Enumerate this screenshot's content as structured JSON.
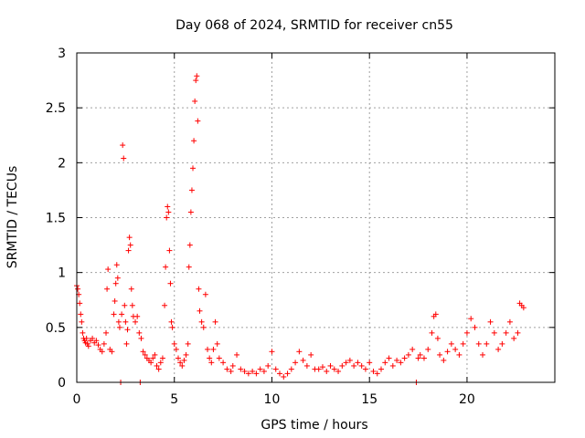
{
  "chart_data": {
    "type": "scatter",
    "title": "Day 068 of 2024, SRMTID for receiver cn55",
    "xlabel": "GPS time / hours",
    "ylabel": "SRMTID / TECUs",
    "xlim": [
      0,
      24.5
    ],
    "ylim": [
      0,
      3
    ],
    "xticks": [
      0,
      5,
      10,
      15,
      20
    ],
    "xtick_labels": [
      "0",
      "5",
      "10",
      "15",
      "20"
    ],
    "yticks": [
      0,
      0.5,
      1,
      1.5,
      2,
      2.5,
      3
    ],
    "ytick_labels": [
      "0",
      "0.5",
      "1",
      "1.5",
      "2",
      "2.5",
      "3"
    ],
    "grid": true,
    "marker": "plus",
    "series": [
      {
        "name": "cn55",
        "color": "#ff0000",
        "points": [
          [
            0.0,
            0.88
          ],
          [
            0.05,
            0.85
          ],
          [
            0.1,
            0.8
          ],
          [
            0.15,
            0.72
          ],
          [
            0.2,
            0.62
          ],
          [
            0.25,
            0.55
          ],
          [
            0.3,
            0.45
          ],
          [
            0.35,
            0.4
          ],
          [
            0.4,
            0.38
          ],
          [
            0.45,
            0.36
          ],
          [
            0.5,
            0.4
          ],
          [
            0.55,
            0.35
          ],
          [
            0.6,
            0.33
          ],
          [
            0.7,
            0.38
          ],
          [
            0.8,
            0.4
          ],
          [
            0.9,
            0.36
          ],
          [
            1.0,
            0.38
          ],
          [
            1.1,
            0.34
          ],
          [
            1.2,
            0.3
          ],
          [
            1.3,
            0.28
          ],
          [
            1.4,
            0.35
          ],
          [
            1.5,
            0.45
          ],
          [
            1.55,
            0.85
          ],
          [
            1.6,
            1.03
          ],
          [
            1.7,
            0.3
          ],
          [
            1.8,
            0.28
          ],
          [
            1.9,
            0.62
          ],
          [
            1.95,
            0.74
          ],
          [
            2.0,
            0.9
          ],
          [
            2.05,
            1.07
          ],
          [
            2.1,
            0.95
          ],
          [
            2.15,
            0.55
          ],
          [
            2.2,
            0.5
          ],
          [
            2.25,
            0.0
          ],
          [
            2.3,
            0.62
          ],
          [
            2.35,
            2.16
          ],
          [
            2.4,
            2.04
          ],
          [
            2.45,
            0.7
          ],
          [
            2.5,
            0.55
          ],
          [
            2.55,
            0.35
          ],
          [
            2.6,
            0.48
          ],
          [
            2.65,
            1.2
          ],
          [
            2.7,
            1.32
          ],
          [
            2.75,
            1.25
          ],
          [
            2.8,
            0.85
          ],
          [
            2.85,
            0.7
          ],
          [
            2.9,
            0.6
          ],
          [
            3.0,
            0.55
          ],
          [
            3.1,
            0.6
          ],
          [
            3.2,
            0.45
          ],
          [
            3.25,
            0.0
          ],
          [
            3.3,
            0.4
          ],
          [
            3.4,
            0.28
          ],
          [
            3.5,
            0.25
          ],
          [
            3.6,
            0.22
          ],
          [
            3.7,
            0.2
          ],
          [
            3.8,
            0.18
          ],
          [
            3.9,
            0.22
          ],
          [
            4.0,
            0.25
          ],
          [
            4.1,
            0.15
          ],
          [
            4.2,
            0.12
          ],
          [
            4.3,
            0.18
          ],
          [
            4.4,
            0.22
          ],
          [
            4.5,
            0.7
          ],
          [
            4.55,
            1.05
          ],
          [
            4.6,
            1.5
          ],
          [
            4.65,
            1.6
          ],
          [
            4.7,
            1.55
          ],
          [
            4.75,
            1.2
          ],
          [
            4.8,
            0.9
          ],
          [
            4.85,
            0.55
          ],
          [
            4.9,
            0.5
          ],
          [
            5.0,
            0.35
          ],
          [
            5.1,
            0.3
          ],
          [
            5.2,
            0.22
          ],
          [
            5.3,
            0.18
          ],
          [
            5.4,
            0.15
          ],
          [
            5.5,
            0.2
          ],
          [
            5.6,
            0.25
          ],
          [
            5.7,
            0.35
          ],
          [
            5.75,
            1.05
          ],
          [
            5.8,
            1.25
          ],
          [
            5.85,
            1.55
          ],
          [
            5.9,
            1.75
          ],
          [
            5.95,
            1.95
          ],
          [
            6.0,
            2.2
          ],
          [
            6.05,
            2.56
          ],
          [
            6.1,
            2.75
          ],
          [
            6.15,
            2.79
          ],
          [
            6.2,
            2.38
          ],
          [
            6.25,
            0.85
          ],
          [
            6.3,
            0.65
          ],
          [
            6.4,
            0.55
          ],
          [
            6.5,
            0.5
          ],
          [
            6.6,
            0.8
          ],
          [
            6.7,
            0.3
          ],
          [
            6.8,
            0.22
          ],
          [
            6.9,
            0.18
          ],
          [
            7.0,
            0.3
          ],
          [
            7.1,
            0.55
          ],
          [
            7.2,
            0.35
          ],
          [
            7.3,
            0.22
          ],
          [
            7.5,
            0.18
          ],
          [
            7.7,
            0.12
          ],
          [
            7.9,
            0.1
          ],
          [
            8.0,
            0.15
          ],
          [
            8.2,
            0.25
          ],
          [
            8.4,
            0.12
          ],
          [
            8.6,
            0.1
          ],
          [
            8.8,
            0.08
          ],
          [
            9.0,
            0.1
          ],
          [
            9.2,
            0.08
          ],
          [
            9.4,
            0.12
          ],
          [
            9.6,
            0.1
          ],
          [
            9.8,
            0.15
          ],
          [
            10.0,
            0.28
          ],
          [
            10.2,
            0.12
          ],
          [
            10.4,
            0.08
          ],
          [
            10.6,
            0.05
          ],
          [
            10.8,
            0.08
          ],
          [
            11.0,
            0.12
          ],
          [
            11.2,
            0.18
          ],
          [
            11.4,
            0.28
          ],
          [
            11.6,
            0.2
          ],
          [
            11.8,
            0.15
          ],
          [
            12.0,
            0.25
          ],
          [
            12.2,
            0.12
          ],
          [
            12.4,
            0.12
          ],
          [
            12.6,
            0.14
          ],
          [
            12.8,
            0.1
          ],
          [
            13.0,
            0.15
          ],
          [
            13.2,
            0.12
          ],
          [
            13.4,
            0.1
          ],
          [
            13.6,
            0.15
          ],
          [
            13.8,
            0.18
          ],
          [
            14.0,
            0.2
          ],
          [
            14.2,
            0.15
          ],
          [
            14.4,
            0.18
          ],
          [
            14.6,
            0.15
          ],
          [
            14.8,
            0.12
          ],
          [
            15.0,
            0.18
          ],
          [
            15.2,
            0.1
          ],
          [
            15.4,
            0.08
          ],
          [
            15.6,
            0.12
          ],
          [
            15.8,
            0.18
          ],
          [
            16.0,
            0.22
          ],
          [
            16.2,
            0.15
          ],
          [
            16.4,
            0.2
          ],
          [
            16.6,
            0.18
          ],
          [
            16.8,
            0.22
          ],
          [
            17.0,
            0.25
          ],
          [
            17.2,
            0.3
          ],
          [
            17.4,
            0.0
          ],
          [
            17.5,
            0.22
          ],
          [
            17.6,
            0.25
          ],
          [
            17.8,
            0.22
          ],
          [
            18.0,
            0.3
          ],
          [
            18.2,
            0.45
          ],
          [
            18.3,
            0.6
          ],
          [
            18.4,
            0.62
          ],
          [
            18.5,
            0.4
          ],
          [
            18.6,
            0.25
          ],
          [
            18.8,
            0.2
          ],
          [
            19.0,
            0.28
          ],
          [
            19.2,
            0.35
          ],
          [
            19.4,
            0.3
          ],
          [
            19.6,
            0.25
          ],
          [
            19.8,
            0.35
          ],
          [
            20.0,
            0.45
          ],
          [
            20.2,
            0.58
          ],
          [
            20.4,
            0.5
          ],
          [
            20.6,
            0.35
          ],
          [
            20.8,
            0.25
          ],
          [
            21.0,
            0.35
          ],
          [
            21.2,
            0.55
          ],
          [
            21.4,
            0.45
          ],
          [
            21.6,
            0.3
          ],
          [
            21.8,
            0.35
          ],
          [
            22.0,
            0.45
          ],
          [
            22.2,
            0.55
          ],
          [
            22.4,
            0.4
          ],
          [
            22.6,
            0.45
          ],
          [
            22.7,
            0.72
          ],
          [
            22.8,
            0.7
          ],
          [
            22.9,
            0.68
          ]
        ]
      }
    ]
  }
}
